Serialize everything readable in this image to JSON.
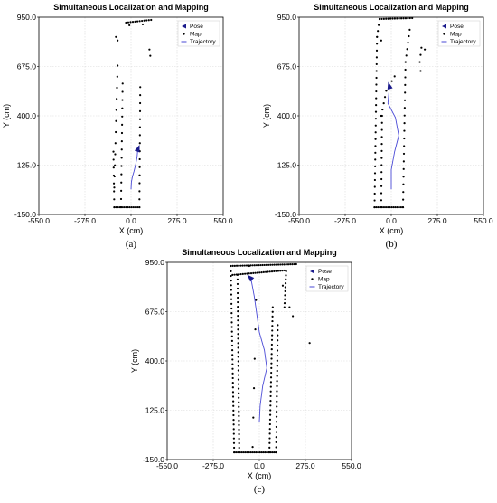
{
  "chart_data": [
    {
      "type": "scatter",
      "panel_label": "(a)",
      "title": "Simultaneous Localization and Mapping",
      "xlabel": "X (cm)",
      "ylabel": "Y (cm)",
      "xlim": [
        -550,
        550
      ],
      "ylim": [
        -150,
        950
      ],
      "xticks": [
        "-550.0",
        "-275.0",
        "0.0",
        "275.0",
        "550.0"
      ],
      "yticks": [
        "-150.0",
        "125.0",
        "400.0",
        "675.0",
        "950.0"
      ],
      "grid": true,
      "legend_position": "top-right",
      "legend": [
        "Pose",
        "Map",
        "Trajectory"
      ],
      "pose": {
        "x": 40,
        "y": 210,
        "heading_deg": 70
      },
      "trajectory": [
        [
          0,
          -10
        ],
        [
          2,
          30
        ],
        [
          8,
          60
        ],
        [
          18,
          90
        ],
        [
          28,
          130
        ],
        [
          36,
          170
        ],
        [
          40,
          210
        ]
      ],
      "map_segments": [
        [
          [
            -100,
            0
          ],
          [
            -80,
            680
          ],
          [
            12
          ]
        ],
        [
          [
            -100,
            -110
          ],
          [
            -105,
            200
          ],
          [
            8
          ]
        ],
        [
          [
            -60,
            -110
          ],
          [
            -50,
            580
          ],
          [
            16
          ]
        ],
        [
          [
            -100,
            -110
          ],
          [
            50,
            -110
          ],
          [
            14
          ]
        ],
        [
          [
            50,
            -110
          ],
          [
            55,
            560
          ],
          [
            16
          ]
        ],
        [
          [
            -30,
            920
          ],
          [
            120,
            935
          ],
          [
            12
          ]
        ]
      ],
      "map_points": [
        [
          -90,
          840
        ],
        [
          -80,
          820
        ],
        [
          110,
          770
        ],
        [
          115,
          735
        ],
        [
          -10,
          905
        ],
        [
          70,
          910
        ]
      ]
    },
    {
      "type": "scatter",
      "panel_label": "(b)",
      "title": "Simultaneous Localization and Mapping",
      "xlabel": "X (cm)",
      "ylabel": "Y (cm)",
      "xlim": [
        -550,
        550
      ],
      "ylim": [
        -150,
        950
      ],
      "xticks": [
        "-550.0",
        "-275.0",
        "0.0",
        "275.0",
        "550.0"
      ],
      "yticks": [
        "-150.0",
        "125.0",
        "400.0",
        "675.0",
        "950.0"
      ],
      "grid": true,
      "legend_position": "top-right",
      "legend": [
        "Pose",
        "Map",
        "Trajectory"
      ],
      "pose": {
        "x": -10,
        "y": 560,
        "heading_deg": 105
      },
      "trajectory": [
        [
          0,
          -10
        ],
        [
          0,
          100
        ],
        [
          20,
          200
        ],
        [
          45,
          290
        ],
        [
          25,
          390
        ],
        [
          -20,
          470
        ],
        [
          -15,
          520
        ],
        [
          -10,
          560
        ]
      ],
      "map_segments": [
        [
          [
            -100,
            -110
          ],
          [
            -85,
            840
          ],
          [
            26
          ]
        ],
        [
          [
            -60,
            -110
          ],
          [
            -55,
            400
          ],
          [
            14
          ]
        ],
        [
          [
            -100,
            -110
          ],
          [
            70,
            -110
          ],
          [
            16
          ]
        ],
        [
          [
            70,
            -110
          ],
          [
            85,
            700
          ],
          [
            20
          ]
        ],
        [
          [
            85,
            700
          ],
          [
            110,
            880
          ],
          [
            6
          ]
        ],
        [
          [
            -70,
            940
          ],
          [
            125,
            945
          ],
          [
            16
          ]
        ],
        [
          [
            -85,
            840
          ],
          [
            -70,
            940
          ],
          [
            4
          ]
        ],
        [
          [
            -60,
            400
          ],
          [
            -30,
            540
          ],
          [
            5
          ]
        ],
        [
          [
            -30,
            540
          ],
          [
            20,
            620
          ],
          [
            4
          ]
        ]
      ],
      "map_points": [
        [
          180,
          780
        ],
        [
          175,
          740
        ],
        [
          170,
          700
        ],
        [
          175,
          650
        ],
        [
          200,
          770
        ],
        [
          -60,
          820
        ]
      ]
    },
    {
      "type": "scatter",
      "panel_label": "(c)",
      "title": "Simultaneous Localization and Mapping",
      "xlabel": "X (cm)",
      "ylabel": "Y (cm)",
      "xlim": [
        -550,
        550
      ],
      "ylim": [
        -150,
        950
      ],
      "xticks": [
        "-550.0",
        "-275.0",
        "0.0",
        "275.0",
        "550.0"
      ],
      "yticks": [
        "-150.0",
        "125.0",
        "400.0",
        "675.0",
        "950.0"
      ],
      "grid": true,
      "legend_position": "top-right",
      "legend": [
        "Pose",
        "Map",
        "Trajectory"
      ],
      "pose": {
        "x": -50,
        "y": 860,
        "heading_deg": 135
      },
      "trajectory": [
        [
          0,
          60
        ],
        [
          5,
          150
        ],
        [
          20,
          260
        ],
        [
          45,
          360
        ],
        [
          30,
          460
        ],
        [
          0,
          560
        ],
        [
          -15,
          660
        ],
        [
          -30,
          760
        ],
        [
          -50,
          860
        ]
      ],
      "map_segments": [
        [
          [
            -150,
            -110
          ],
          [
            -170,
            900
          ],
          [
            40
          ]
        ],
        [
          [
            -120,
            -110
          ],
          [
            -130,
            880
          ],
          [
            40
          ]
        ],
        [
          [
            -150,
            -110
          ],
          [
            100,
            -110
          ],
          [
            24
          ]
        ],
        [
          [
            60,
            -110
          ],
          [
            80,
            700
          ],
          [
            32
          ]
        ],
        [
          [
            100,
            -110
          ],
          [
            110,
            600
          ],
          [
            26
          ]
        ],
        [
          [
            -170,
            930
          ],
          [
            220,
            940
          ],
          [
            34
          ]
        ],
        [
          [
            -160,
            880
          ],
          [
            150,
            905
          ],
          [
            26
          ]
        ],
        [
          [
            150,
            700
          ],
          [
            160,
            900
          ],
          [
            10
          ]
        ],
        [
          [
            -40,
            -80
          ],
          [
            -20,
            740
          ],
          [
            6
          ]
        ]
      ],
      "map_points": [
        [
          300,
          500
        ],
        [
          200,
          650
        ],
        [
          180,
          700
        ],
        [
          -60,
          930
        ],
        [
          140,
          820
        ]
      ]
    }
  ]
}
